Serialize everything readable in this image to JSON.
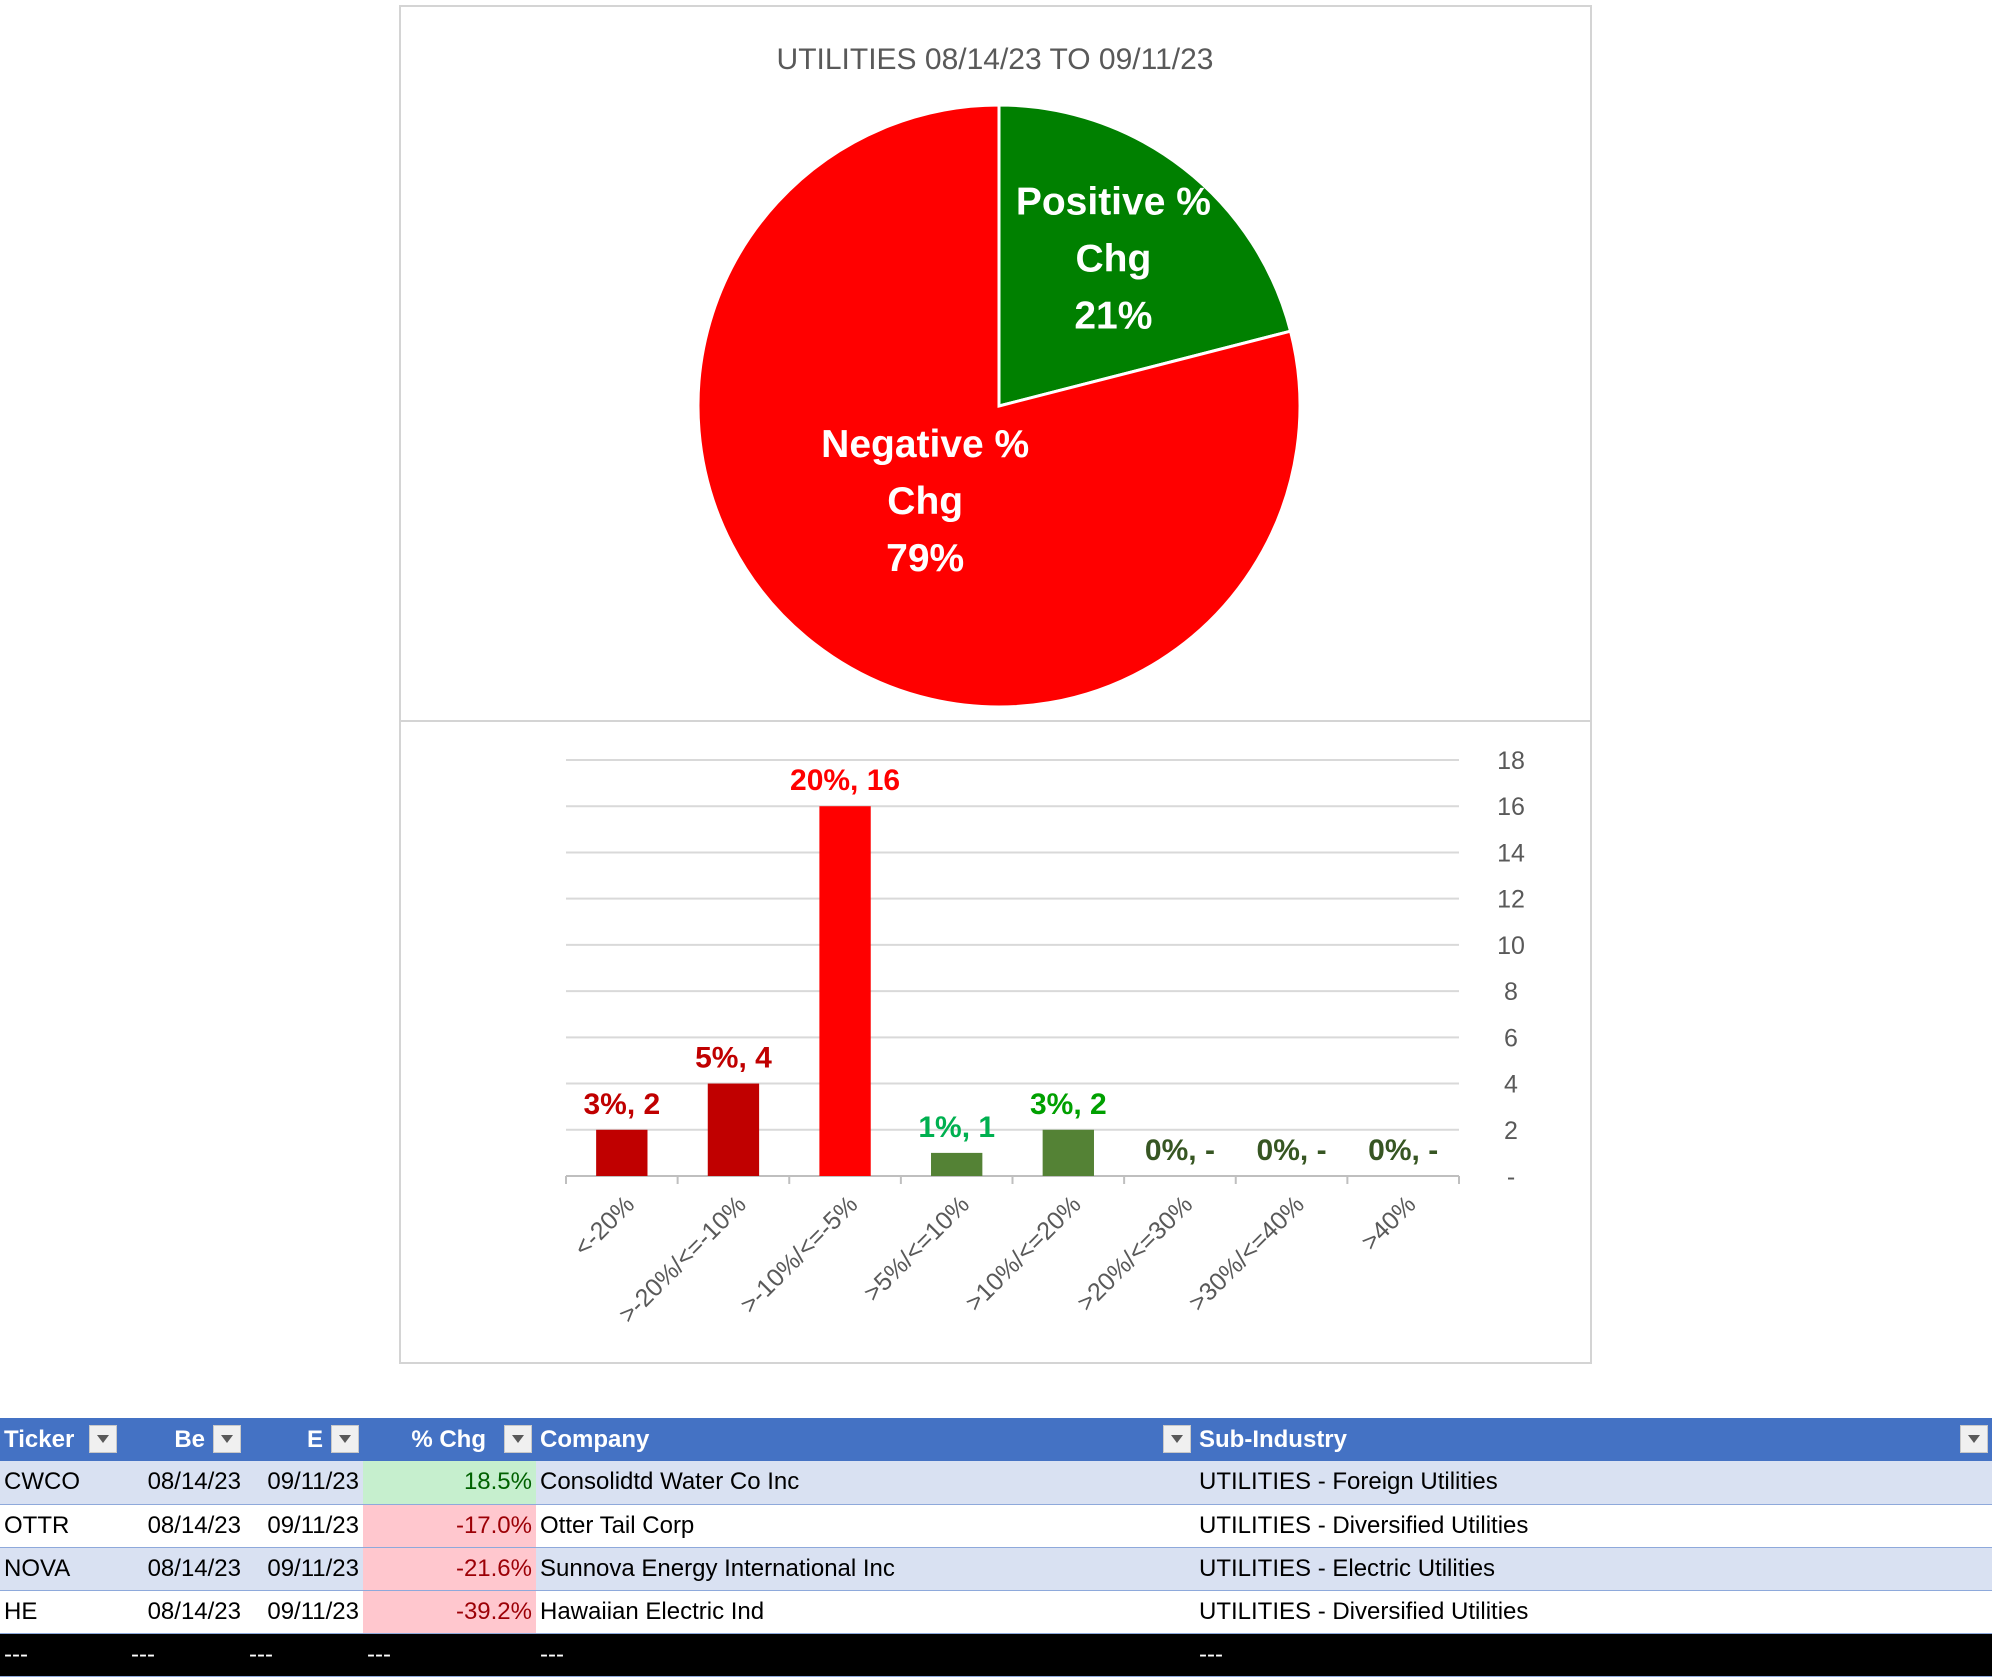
{
  "pie_chart": {
    "title": "UTILITIES 08/14/23 TO 09/11/23"
  },
  "chart_data": [
    {
      "type": "pie",
      "title": "UTILITIES 08/14/23 TO 09/11/23",
      "slices": [
        {
          "label_line1": "Positive %",
          "label_line2": "Chg",
          "value_label": "21%",
          "value": 21,
          "color": "#008000"
        },
        {
          "label_line1": "Negative %",
          "label_line2": "Chg",
          "value_label": "79%",
          "value": 79,
          "color": "#ff0000"
        }
      ]
    },
    {
      "type": "bar",
      "categories": [
        "<-20%",
        ">-20%/<=-10%",
        ">-10%/<=-5%",
        ">5%/<=10%",
        ">10%/<=20%",
        ">20%/<=30%",
        ">30%/<=40%",
        ">40%"
      ],
      "values": [
        2,
        4,
        16,
        1,
        2,
        0,
        0,
        0
      ],
      "data_labels": [
        "3%,  2",
        "5%,  4",
        "20%,  16",
        "1%,  1",
        "3%,  2",
        "0%,  -",
        "0%,  -",
        "0%,  -"
      ],
      "bar_colors": [
        "#c00000",
        "#c00000",
        "#ff0000",
        "#548235",
        "#548235",
        "#548235",
        "#548235",
        "#548235"
      ],
      "label_colors": [
        "#c00000",
        "#c00000",
        "#ff0000",
        "#00b050",
        "#00a000",
        "#375623",
        "#375623",
        "#375623"
      ],
      "ylim": [
        0,
        18
      ],
      "yticks": [
        0,
        2,
        4,
        6,
        8,
        10,
        12,
        14,
        16,
        18
      ],
      "ytick_labels": [
        "-",
        "2",
        "4",
        "6",
        "8",
        "10",
        "12",
        "14",
        "16",
        "18"
      ],
      "y_axis_side": "right",
      "grid": true
    }
  ],
  "table": {
    "headers": [
      "Ticker",
      "Be",
      "E",
      "% Chg",
      "Company",
      "Sub-Industry"
    ],
    "rows": [
      {
        "ticker": "CWCO",
        "begin": "08/14/23",
        "end": "09/11/23",
        "chg": "18.5%",
        "company": "Consolidtd Water Co Inc",
        "sub": "UTILITIES - Foreign Utilities",
        "sign": "pos"
      },
      {
        "ticker": "OTTR",
        "begin": "08/14/23",
        "end": "09/11/23",
        "chg": "-17.0%",
        "company": "Otter Tail Corp",
        "sub": "UTILITIES - Diversified Utilities",
        "sign": "neg"
      },
      {
        "ticker": "NOVA",
        "begin": "08/14/23",
        "end": "09/11/23",
        "chg": "-21.6%",
        "company": "Sunnova Energy International Inc",
        "sub": "UTILITIES - Electric Utilities",
        "sign": "neg"
      },
      {
        "ticker": "HE",
        "begin": "08/14/23",
        "end": "09/11/23",
        "chg": "-39.2%",
        "company": "Hawaiian Electric Ind",
        "sub": "UTILITIES - Diversified Utilities",
        "sign": "neg"
      }
    ],
    "total_row": [
      "---",
      "---",
      "---",
      "---",
      "---",
      "---"
    ]
  }
}
